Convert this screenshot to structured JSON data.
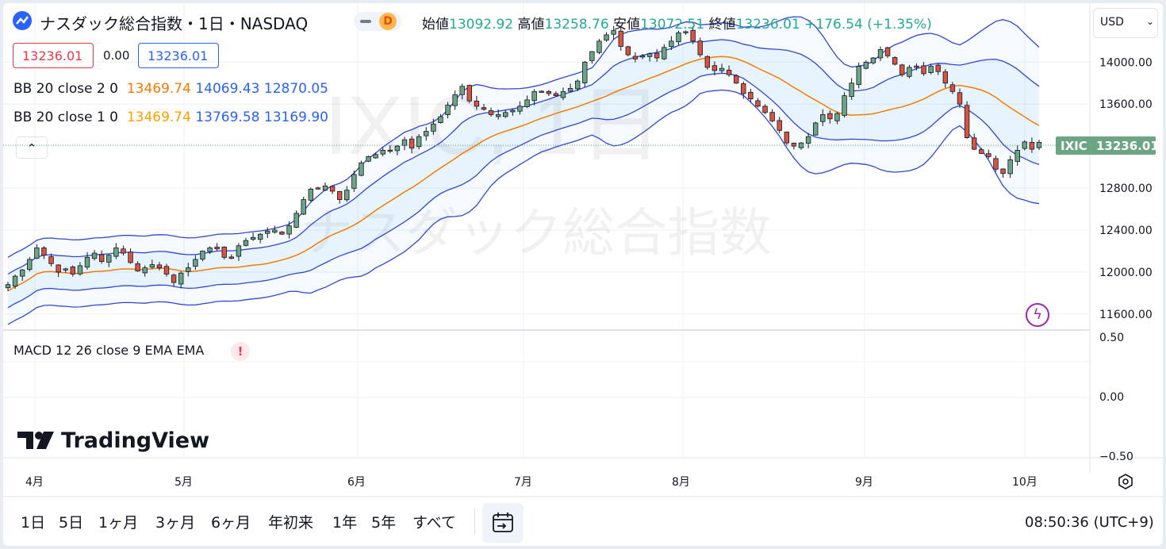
{
  "header": {
    "symbol_title": "ナスダック総合指数・1日・NASDAQ",
    "badge": "D",
    "ohlc": {
      "open_label": "始値",
      "open": "13092.92",
      "high_label": "高値",
      "high": "13258.76",
      "low_label": "安値",
      "low": "13072.51",
      "close_label": "終値",
      "close": "13236.01",
      "change": "+176.54 (+1.35%)"
    },
    "sell_price": "13236.01",
    "spread": "0.00",
    "buy_price": "13236.01"
  },
  "indicators": {
    "bb2": {
      "name": "BB 20 close 2 0",
      "basis": "13469.74",
      "upper": "14069.43",
      "lower": "12870.05"
    },
    "bb1": {
      "name": "BB 20 close 1 0",
      "basis": "13469.74",
      "upper": "13769.58",
      "lower": "13169.90"
    },
    "macd": {
      "name": "MACD 12 26 close 9 EMA EMA",
      "warning": "!"
    }
  },
  "watermark": {
    "symbol": "IXIC, 1日",
    "name": "ナスダック総合指数"
  },
  "logo": "TradingView",
  "currency": "USD",
  "price_axis": [
    "14000.00",
    "13600.00",
    "13200.00",
    "12800.00",
    "12400.00",
    "12000.00",
    "11600.00"
  ],
  "macd_axis": [
    "0.50",
    "0.00",
    "−0.50"
  ],
  "last_price_label": {
    "ticker": "IXIC",
    "price": "13236.01"
  },
  "time_axis": [
    "4月",
    "5月",
    "6月",
    "7月",
    "8月",
    "9月",
    "10月"
  ],
  "toolbar": {
    "ranges": [
      "1日",
      "5日",
      "1ヶ月",
      "3ヶ月",
      "6ヶ月",
      "年初来",
      "1年",
      "5年",
      "すべて"
    ],
    "clock": "08:50:36 (UTC+9)"
  },
  "colors": {
    "up": "#6ba583",
    "down": "#d75442",
    "bb_band": "#3246d6",
    "bb_basis": "#f57c00",
    "red_text": "#f23645",
    "blue_text": "#2962ff",
    "price_label_bg": "#6ba583"
  },
  "chart_data": {
    "type": "candlestick",
    "yrange": [
      11500,
      14350
    ],
    "series_close": [
      11880,
      11960,
      12020,
      12120,
      12230,
      12160,
      12080,
      12000,
      12030,
      11980,
      12060,
      12140,
      12180,
      12100,
      12160,
      12230,
      12180,
      12090,
      12010,
      12040,
      12070,
      12040,
      11980,
      11900,
      11990,
      12040,
      12120,
      12200,
      12230,
      12220,
      12140,
      12130,
      12250,
      12300,
      12330,
      12360,
      12390,
      12400,
      12360,
      12440,
      12560,
      12690,
      12790,
      12800,
      12820,
      12770,
      12690,
      12780,
      12930,
      13040,
      13100,
      13120,
      13160,
      13160,
      13200,
      13260,
      13180,
      13290,
      13340,
      13410,
      13480,
      13590,
      13690,
      13770,
      13630,
      13580,
      13550,
      13500,
      13500,
      13520,
      13540,
      13580,
      13640,
      13720,
      13720,
      13700,
      13680,
      13720,
      13750,
      13820,
      14000,
      14100,
      14200,
      14260,
      14300,
      14150,
      14070,
      14030,
      14060,
      14080,
      14040,
      14140,
      14200,
      14280,
      14290,
      14200,
      14070,
      13950,
      13920,
      13940,
      13880,
      13800,
      13700,
      13650,
      13580,
      13520,
      13440,
      13350,
      13230,
      13200,
      13230,
      13290,
      13420,
      13500,
      13460,
      13510,
      13680,
      13800,
      13960,
      14000,
      14040,
      14120,
      14060,
      13980,
      13880,
      13950,
      13950,
      13890,
      13960,
      13910,
      13800,
      13720,
      13600,
      13280,
      13170,
      13130,
      13100,
      12980,
      12940,
      13070,
      13160,
      13240,
      13170,
      13236
    ]
  }
}
